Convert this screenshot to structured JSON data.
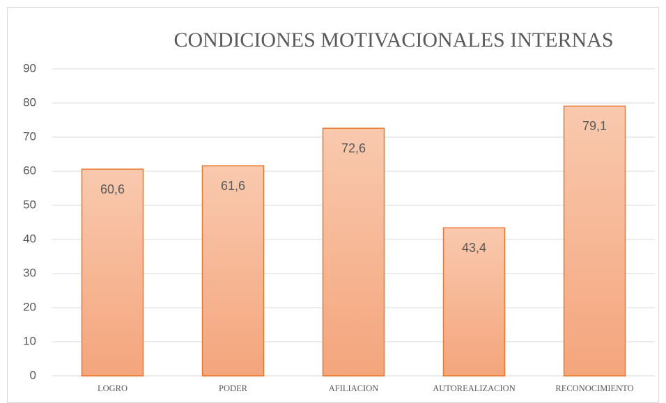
{
  "chart_data": {
    "type": "bar",
    "title": "CONDICIONES MOTIVACIONALES INTERNAS",
    "categories": [
      "LOGRO",
      "PODER",
      "AFILIACION",
      "AUTOREALIZACION",
      "RECONOCIMIENTO"
    ],
    "values": [
      60.6,
      61.6,
      72.6,
      43.4,
      79.1
    ],
    "value_labels": [
      "60,6",
      "61,6",
      "72,6",
      "43,4",
      "79,1"
    ],
    "color": "#f5ad87",
    "ylim": [
      0,
      90
    ],
    "yticks": [
      0,
      10,
      20,
      30,
      40,
      50,
      60,
      70,
      80,
      90
    ],
    "grid": true
  }
}
